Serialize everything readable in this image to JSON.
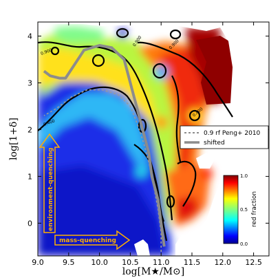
{
  "chart_data": {
    "type": "heatmap",
    "xlabel": "log[M★/M⊙]",
    "ylabel": "log[1+δ]",
    "xlim": [
      9.0,
      12.75
    ],
    "ylim": [
      -0.7,
      4.3
    ],
    "xticks": [
      "9.0",
      "9.5",
      "10.0",
      "10.5",
      "11.0",
      "11.5",
      "12.0",
      "12.5"
    ],
    "yticks": [
      "0",
      "1",
      "2",
      "3",
      "4"
    ],
    "colorbar": {
      "label": "red fraction",
      "min": 0.0,
      "max": 1.0,
      "ticks": [
        "1.0",
        "0.5",
        "0.0"
      ]
    },
    "contour_labels": [
      "0.900",
      "0.900",
      "0.400",
      "0.900",
      "0.400"
    ],
    "legend": {
      "position": "right",
      "entries": [
        {
          "label": "0.9 rf Peng+ 2010",
          "style": "dashed",
          "color": "#8c8c8c"
        },
        {
          "label": "shifted",
          "style": "solid",
          "color": "#8c8c8c"
        }
      ]
    },
    "annotations": [
      "environment-quenching",
      "mass-quenching"
    ],
    "series": [
      {
        "name": "0.9 rf Peng+ 2010",
        "x": [
          11.0,
          11.0,
          10.95,
          10.88,
          10.8,
          10.72,
          10.62,
          10.5,
          10.3,
          10.05,
          9.8,
          9.55,
          9.3,
          9.1
        ],
        "y": [
          -0.7,
          -0.2,
          0.3,
          0.8,
          1.3,
          1.7,
          2.1,
          2.5,
          2.75,
          2.85,
          2.85,
          2.7,
          2.45,
          2.3
        ]
      },
      {
        "name": "shifted",
        "x": [
          11.05,
          11.0,
          10.95,
          10.85,
          10.8,
          10.7,
          10.6,
          10.5,
          10.4,
          10.2,
          10.0,
          9.75,
          9.6,
          9.45,
          9.35,
          9.2,
          9.1
        ],
        "y": [
          -0.5,
          0.0,
          0.5,
          1.0,
          1.5,
          2.0,
          2.5,
          3.0,
          3.5,
          3.75,
          3.8,
          3.7,
          3.4,
          3.1,
          3.1,
          3.15,
          3.25
        ]
      }
    ]
  }
}
